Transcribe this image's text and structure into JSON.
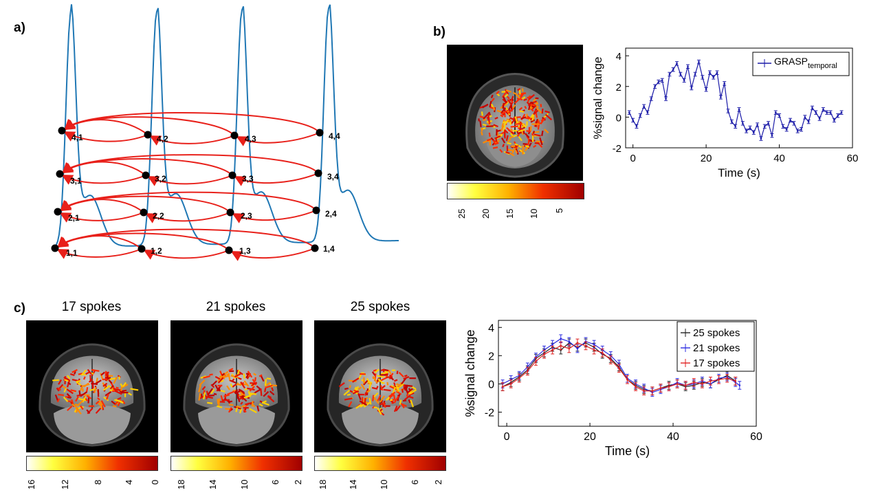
{
  "panels": {
    "a": {
      "label": "a)",
      "nodes": [
        [
          "4,1",
          "4,2",
          "4,3",
          "4,4"
        ],
        [
          "3,1",
          "3,2",
          "3,3",
          "3,4"
        ],
        [
          "2,1",
          "2,2",
          "2,3",
          "2,4"
        ],
        [
          "1,1",
          "1,2",
          "1,3",
          "1,4"
        ]
      ]
    },
    "b": {
      "label": "b)",
      "colorbar_ticks": [
        "25",
        "20",
        "15",
        "10",
        "5"
      ],
      "legend": {
        "main": "GRASP",
        "subscript": "temporal"
      }
    },
    "c": {
      "label": "c)",
      "images": [
        {
          "title": "17 spokes",
          "colorbar_ticks": [
            "16",
            "12",
            "8",
            "4",
            "0"
          ]
        },
        {
          "title": "21 spokes",
          "colorbar_ticks": [
            "18",
            "14",
            "10",
            "6",
            "2"
          ]
        },
        {
          "title": "25 spokes",
          "colorbar_ticks": [
            "18",
            "14",
            "10",
            "6",
            "2"
          ]
        }
      ]
    }
  },
  "colors": {
    "curve": "#1f77b4",
    "arrow": "#e8201a",
    "grasp": "#1a1aa8",
    "s25": "#222222",
    "s21": "#2b2be0",
    "s17": "#e02020"
  },
  "chart_data": [
    {
      "type": "line",
      "id": "panel-b",
      "title": "",
      "xlabel": "Time (s)",
      "ylabel": "%signal change",
      "xlim": [
        -2,
        60
      ],
      "ylim": [
        -2,
        4.5
      ],
      "xticks": [
        "0",
        "20",
        "40",
        "60"
      ],
      "yticks": [
        "-2",
        "0",
        "2",
        "4"
      ],
      "series": [
        {
          "name": "GRASP temporal",
          "x": [
            -1,
            0,
            1,
            2,
            3,
            4,
            5,
            6,
            7,
            8,
            9,
            10,
            11,
            12,
            13,
            14,
            15,
            16,
            17,
            18,
            19,
            20,
            21,
            22,
            23,
            24,
            25,
            26,
            27,
            28,
            29,
            30,
            31,
            32,
            33,
            34,
            35,
            36,
            37,
            38,
            39,
            40,
            41,
            42,
            43,
            44,
            45,
            46,
            47,
            48,
            49,
            50,
            51,
            52,
            53,
            54,
            55,
            56,
            57
          ],
          "y": [
            0.3,
            -0.2,
            -0.6,
            0.1,
            0.7,
            0.3,
            1.2,
            2.0,
            2.3,
            2.4,
            1.2,
            2.8,
            3.1,
            3.5,
            2.8,
            2.4,
            3.3,
            1.9,
            2.8,
            3.6,
            2.6,
            1.8,
            2.9,
            2.6,
            2.9,
            1.3,
            2.2,
            0.4,
            -0.3,
            -0.6,
            0.5,
            -0.4,
            -0.9,
            -0.7,
            -1.0,
            -0.5,
            -1.4,
            -0.6,
            -0.4,
            -1.2,
            0.3,
            0.1,
            -0.6,
            -0.8,
            -0.2,
            -0.4,
            -0.9,
            -0.8,
            0.0,
            -0.3,
            0.6,
            0.3,
            -0.1,
            0.5,
            0.3,
            0.3,
            -0.2,
            0.1,
            0.3
          ]
        }
      ]
    },
    {
      "type": "line",
      "id": "panel-c",
      "title": "",
      "xlabel": "Time (s)",
      "ylabel": "%signal change",
      "xlim": [
        -2,
        60
      ],
      "ylim": [
        -3,
        4.5
      ],
      "xticks": [
        "0",
        "20",
        "40",
        "60"
      ],
      "yticks": [
        "-2",
        "0",
        "2",
        "4"
      ],
      "legend": [
        "25 spokes",
        "21 spokes",
        "17 spokes"
      ],
      "series": [
        {
          "name": "25 spokes",
          "x": [
            -1,
            1,
            3,
            5,
            7,
            9,
            11,
            13,
            15,
            17,
            19,
            21,
            23,
            25,
            27,
            29,
            31,
            33,
            35,
            37,
            39,
            41,
            43,
            45,
            47,
            49,
            51,
            53,
            55
          ],
          "y": [
            -0.2,
            0.1,
            0.5,
            1.0,
            1.8,
            2.2,
            2.6,
            2.4,
            2.9,
            2.6,
            2.9,
            2.6,
            2.1,
            1.8,
            1.2,
            0.3,
            -0.1,
            -0.4,
            -0.5,
            -0.3,
            -0.1,
            0.0,
            -0.2,
            -0.1,
            0.1,
            0.0,
            0.3,
            0.6,
            0.2
          ]
        },
        {
          "name": "21 spokes",
          "x": [
            -1,
            1,
            3,
            5,
            7,
            9,
            11,
            13,
            15,
            17,
            19,
            21,
            23,
            25,
            27,
            29,
            31,
            33,
            35,
            37,
            39,
            41,
            43,
            45,
            47,
            49,
            51,
            53,
            55,
            56
          ],
          "y": [
            0.0,
            0.3,
            0.6,
            1.2,
            1.9,
            2.4,
            2.8,
            3.2,
            3.0,
            2.5,
            3.0,
            2.8,
            2.4,
            2.0,
            1.4,
            0.4,
            0.0,
            -0.3,
            -0.6,
            -0.4,
            -0.2,
            0.1,
            -0.1,
            0.0,
            0.2,
            0.0,
            0.4,
            0.5,
            0.1,
            -0.1
          ]
        },
        {
          "name": "17 spokes",
          "x": [
            -1,
            1,
            3,
            5,
            7,
            9,
            11,
            13,
            15,
            17,
            19,
            21,
            23,
            25,
            27,
            29,
            31,
            33,
            35,
            37,
            39,
            41,
            43,
            45,
            47,
            49,
            51,
            53,
            55
          ],
          "y": [
            -0.2,
            0.0,
            0.4,
            0.9,
            1.6,
            2.1,
            2.4,
            2.7,
            2.5,
            2.9,
            2.7,
            2.4,
            2.2,
            1.7,
            1.1,
            0.3,
            -0.2,
            -0.5,
            -0.5,
            -0.3,
            -0.2,
            0.0,
            -0.1,
            0.1,
            0.0,
            0.2,
            0.3,
            0.4,
            0.2
          ]
        }
      ]
    }
  ]
}
